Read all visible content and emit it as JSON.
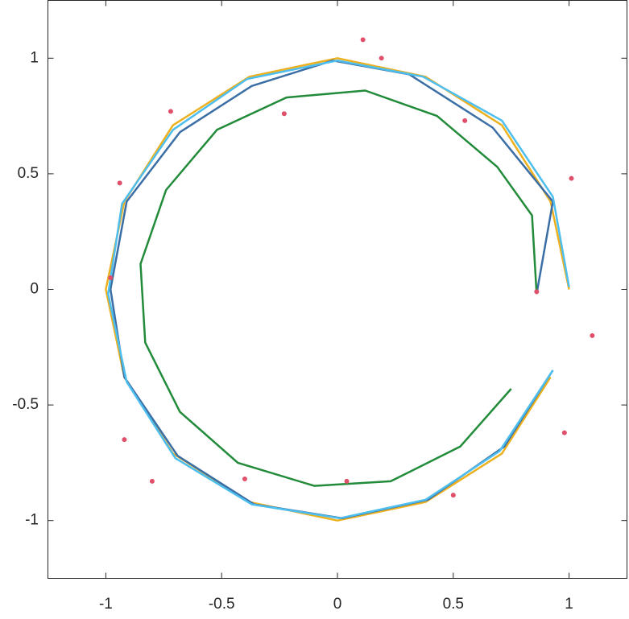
{
  "chart_data": {
    "type": "line",
    "box": true,
    "grid": false,
    "xlim": [
      -1.25,
      1.25
    ],
    "ylim": [
      -1.25,
      1.25
    ],
    "xticks": [
      -1,
      -0.5,
      0,
      0.5,
      1
    ],
    "yticks": [
      -1,
      -0.5,
      0,
      0.5,
      1
    ],
    "series": [
      {
        "color": "#EDB120",
        "mode": "line",
        "x": [
          1,
          0.92,
          0.71,
          0.38,
          0,
          -0.38,
          -0.71,
          -0.92,
          -1,
          -0.92,
          -0.71,
          -0.38,
          0,
          0.38,
          0.71,
          0.92
        ],
        "values": [
          0,
          0.38,
          0.71,
          0.92,
          1,
          0.92,
          0.71,
          0.38,
          0,
          -0.38,
          -0.71,
          -0.92,
          -1,
          -0.92,
          -0.71,
          -0.38
        ]
      },
      {
        "color": "#3A6EA5",
        "mode": "line",
        "x": [
          0.86,
          0.93,
          0.67,
          0.31,
          -0.02,
          -0.37,
          -0.68,
          -0.91,
          -0.98,
          -0.92,
          -0.69,
          -0.36,
          0.02,
          0.39,
          0.72,
          0.93
        ],
        "values": [
          -0.02,
          0.38,
          0.7,
          0.93,
          0.99,
          0.88,
          0.68,
          0.38,
          0,
          -0.38,
          -0.72,
          -0.93,
          -0.99,
          -0.91,
          -0.68,
          -0.35
        ]
      },
      {
        "color": "#4DBEEE",
        "mode": "line",
        "x": [
          1,
          0.93,
          0.71,
          0.37,
          0,
          -0.39,
          -0.71,
          -0.93,
          -0.99,
          -0.91,
          -0.7,
          -0.37,
          0.01,
          0.38,
          0.7,
          0.93
        ],
        "values": [
          0.01,
          0.4,
          0.73,
          0.92,
          0.99,
          0.91,
          0.69,
          0.37,
          -0.02,
          -0.4,
          -0.73,
          -0.93,
          -0.99,
          -0.91,
          -0.7,
          -0.35
        ]
      },
      {
        "color": "#228B3A",
        "mode": "line",
        "x": [
          0.86,
          0.84,
          0.69,
          0.43,
          0.12,
          -0.22,
          -0.52,
          -0.74,
          -0.85,
          -0.83,
          -0.68,
          -0.43,
          -0.1,
          0.23,
          0.53,
          0.75
        ],
        "values": [
          -0.02,
          0.32,
          0.53,
          0.75,
          0.86,
          0.83,
          0.69,
          0.43,
          0.11,
          -0.23,
          -0.53,
          -0.75,
          -0.85,
          -0.83,
          -0.68,
          -0.43
        ]
      },
      {
        "color": "#E0506A",
        "mode": "markers",
        "x": [
          0.11,
          0.19,
          -0.72,
          -0.23,
          0.55,
          1.01,
          -0.94,
          -0.98,
          0.86,
          1.1,
          -0.92,
          -0.8,
          -0.4,
          0.04,
          0.5,
          0.98
        ],
        "values": [
          1.08,
          1,
          0.77,
          0.76,
          0.73,
          0.48,
          0.46,
          0.05,
          -0.01,
          -0.2,
          -0.65,
          -0.83,
          -0.82,
          -0.83,
          -0.89,
          -0.62
        ]
      }
    ]
  }
}
